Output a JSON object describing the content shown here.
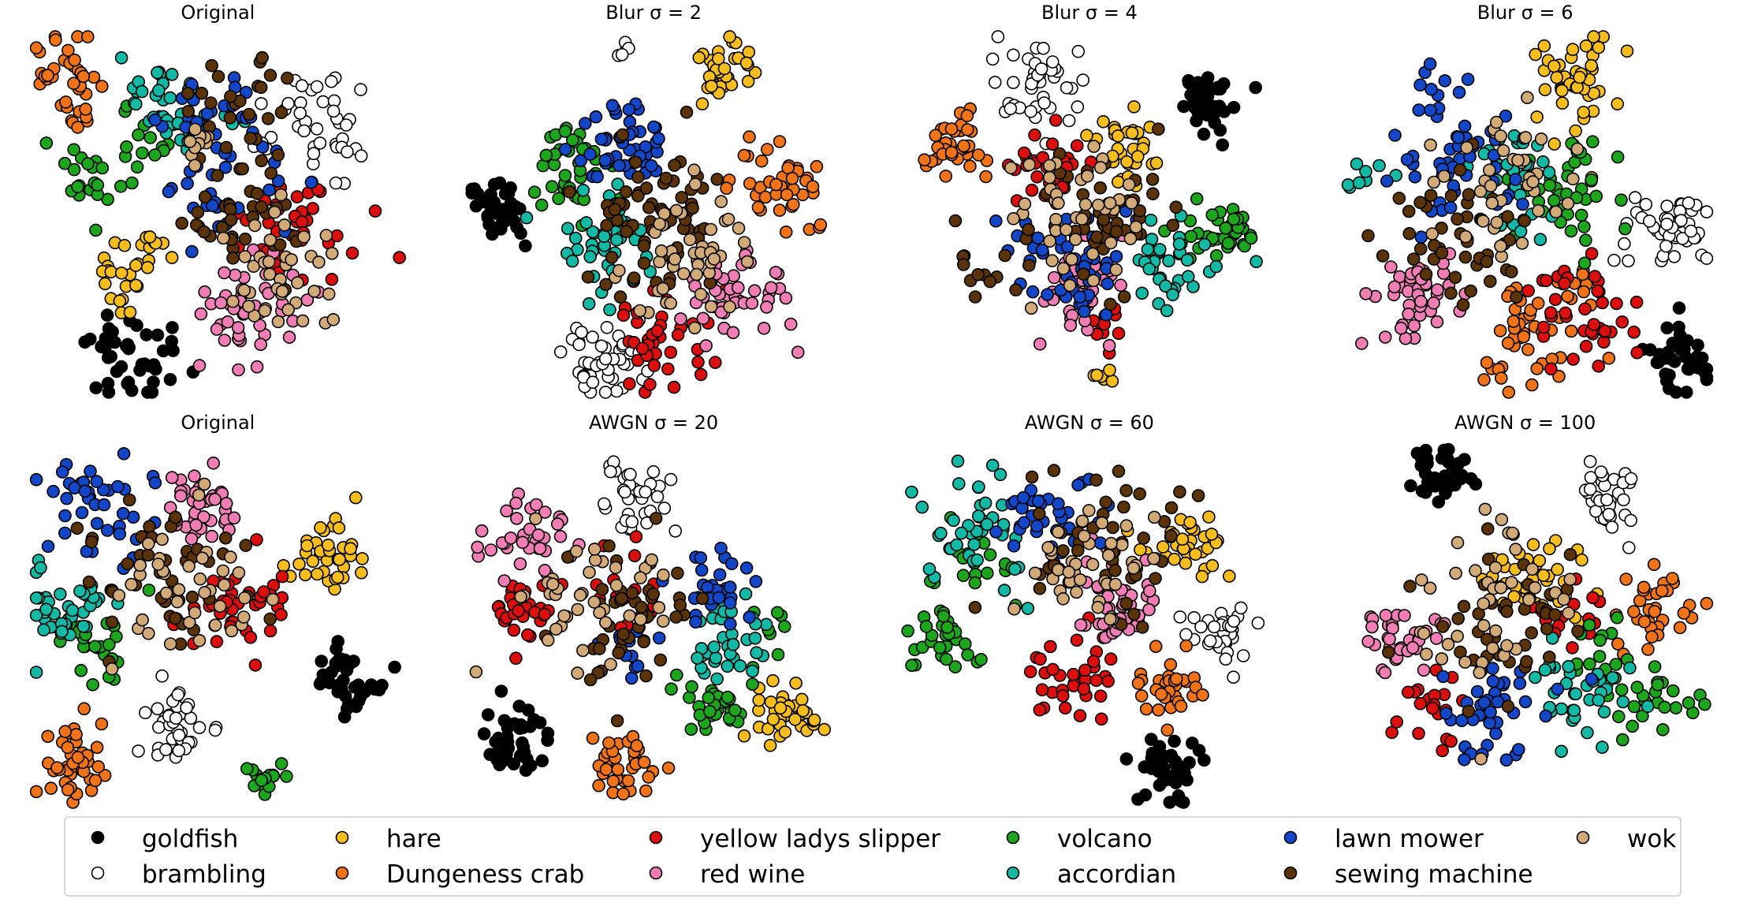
{
  "chart_data": {
    "type": "scatter",
    "legend": {
      "placement": "bottom",
      "entries": [
        {
          "key": "goldfish",
          "label": "goldfish",
          "color": "#000000"
        },
        {
          "key": "brambling",
          "label": "brambling",
          "color": "#ffffff"
        },
        {
          "key": "hare",
          "label": "hare",
          "color": "#f5be1e"
        },
        {
          "key": "dungeness_crab",
          "label": "Dungeness crab",
          "color": "#f07319"
        },
        {
          "key": "yellow_ladys_slipper",
          "label": "yellow ladys slipper",
          "color": "#dc0f0f"
        },
        {
          "key": "red_wine",
          "label": "red wine",
          "color": "#f07eb4"
        },
        {
          "key": "volcano",
          "label": "volcano",
          "color": "#1ea51e"
        },
        {
          "key": "accordian",
          "label": "accordian",
          "color": "#14b9a5"
        },
        {
          "key": "lawn_mower",
          "label": "lawn mower",
          "color": "#1446c8"
        },
        {
          "key": "sewing_machine",
          "label": "sewing machine",
          "color": "#5a330a"
        },
        {
          "key": "wok",
          "label": "wok",
          "color": "#d2aa78"
        }
      ]
    },
    "panels": [
      {
        "title": "Original",
        "clusters": [
          {
            "c": "goldfish",
            "x": 0.27,
            "y": 0.11,
            "s": 0.07,
            "n": 45
          },
          {
            "c": "brambling",
            "x": 0.78,
            "y": 0.75,
            "s": 0.07,
            "n": 40
          },
          {
            "c": "hare",
            "x": 0.25,
            "y": 0.33,
            "s": 0.05,
            "n": 25
          },
          {
            "c": "hare",
            "x": 0.32,
            "y": 0.41,
            "s": 0.02,
            "n": 5
          },
          {
            "c": "dungeness_crab",
            "x": 0.1,
            "y": 0.87,
            "s": 0.06,
            "n": 38
          },
          {
            "c": "yellow_ladys_slipper",
            "x": 0.7,
            "y": 0.47,
            "s": 0.1,
            "n": 40
          },
          {
            "c": "red_wine",
            "x": 0.58,
            "y": 0.24,
            "s": 0.07,
            "n": 45
          },
          {
            "c": "volcano",
            "x": 0.18,
            "y": 0.6,
            "s": 0.05,
            "n": 25
          },
          {
            "c": "volcano",
            "x": 0.32,
            "y": 0.71,
            "s": 0.05,
            "n": 12
          },
          {
            "c": "accordian",
            "x": 0.38,
            "y": 0.82,
            "s": 0.08,
            "n": 38
          },
          {
            "c": "lawn_mower",
            "x": 0.52,
            "y": 0.69,
            "s": 0.08,
            "n": 40
          },
          {
            "c": "lawn_mower",
            "x": 0.5,
            "y": 0.5,
            "s": 0.05,
            "n": 15
          },
          {
            "c": "sewing_machine",
            "x": 0.55,
            "y": 0.8,
            "s": 0.07,
            "n": 25
          },
          {
            "c": "sewing_machine",
            "x": 0.55,
            "y": 0.48,
            "s": 0.09,
            "n": 35
          },
          {
            "c": "wok",
            "x": 0.69,
            "y": 0.33,
            "s": 0.08,
            "n": 40
          },
          {
            "c": "wok",
            "x": 0.45,
            "y": 0.68,
            "s": 0.03,
            "n": 10
          }
        ]
      },
      {
        "title": "Blur σ = 2",
        "clusters": [
          {
            "c": "goldfish",
            "x": 0.08,
            "y": 0.51,
            "s": 0.045,
            "n": 38
          },
          {
            "c": "brambling",
            "x": 0.35,
            "y": 0.1,
            "s": 0.06,
            "n": 45
          },
          {
            "c": "brambling",
            "x": 0.43,
            "y": 0.95,
            "s": 0.02,
            "n": 5
          },
          {
            "c": "hare",
            "x": 0.68,
            "y": 0.88,
            "s": 0.05,
            "n": 35
          },
          {
            "c": "dungeness_crab",
            "x": 0.85,
            "y": 0.58,
            "s": 0.06,
            "n": 40
          },
          {
            "c": "yellow_ladys_slipper",
            "x": 0.53,
            "y": 0.15,
            "s": 0.07,
            "n": 40
          },
          {
            "c": "red_wine",
            "x": 0.72,
            "y": 0.27,
            "s": 0.07,
            "n": 45
          },
          {
            "c": "volcano",
            "x": 0.28,
            "y": 0.63,
            "s": 0.06,
            "n": 40
          },
          {
            "c": "accordian",
            "x": 0.35,
            "y": 0.4,
            "s": 0.08,
            "n": 40
          },
          {
            "c": "lawn_mower",
            "x": 0.42,
            "y": 0.7,
            "s": 0.06,
            "n": 45
          },
          {
            "c": "sewing_machine",
            "x": 0.52,
            "y": 0.48,
            "s": 0.1,
            "n": 65
          },
          {
            "c": "wok",
            "x": 0.62,
            "y": 0.38,
            "s": 0.1,
            "n": 45
          }
        ]
      },
      {
        "title": "Blur σ = 4",
        "clusters": [
          {
            "c": "goldfish",
            "x": 0.82,
            "y": 0.81,
            "s": 0.045,
            "n": 42
          },
          {
            "c": "brambling",
            "x": 0.35,
            "y": 0.85,
            "s": 0.06,
            "n": 42
          },
          {
            "c": "hare",
            "x": 0.6,
            "y": 0.68,
            "s": 0.05,
            "n": 35
          },
          {
            "c": "hare",
            "x": 0.52,
            "y": 0.06,
            "s": 0.02,
            "n": 6
          },
          {
            "c": "dungeness_crab",
            "x": 0.16,
            "y": 0.7,
            "s": 0.05,
            "n": 35
          },
          {
            "c": "yellow_ladys_slipper",
            "x": 0.38,
            "y": 0.63,
            "s": 0.06,
            "n": 30
          },
          {
            "c": "yellow_ladys_slipper",
            "x": 0.55,
            "y": 0.2,
            "s": 0.03,
            "n": 10
          },
          {
            "c": "red_wine",
            "x": 0.49,
            "y": 0.3,
            "s": 0.06,
            "n": 45
          },
          {
            "c": "volcano",
            "x": 0.89,
            "y": 0.46,
            "s": 0.045,
            "n": 30
          },
          {
            "c": "volcano",
            "x": 0.76,
            "y": 0.44,
            "s": 0.03,
            "n": 10
          },
          {
            "c": "accordian",
            "x": 0.72,
            "y": 0.35,
            "s": 0.06,
            "n": 35
          },
          {
            "c": "lawn_mower",
            "x": 0.45,
            "y": 0.39,
            "s": 0.08,
            "n": 50
          },
          {
            "c": "sewing_machine",
            "x": 0.55,
            "y": 0.47,
            "s": 0.1,
            "n": 45
          },
          {
            "c": "sewing_machine",
            "x": 0.2,
            "y": 0.35,
            "s": 0.05,
            "n": 12
          },
          {
            "c": "wok",
            "x": 0.45,
            "y": 0.52,
            "s": 0.09,
            "n": 45
          }
        ]
      },
      {
        "title": "Blur σ = 6",
        "clusters": [
          {
            "c": "goldfish",
            "x": 0.92,
            "y": 0.1,
            "s": 0.045,
            "n": 40
          },
          {
            "c": "brambling",
            "x": 0.9,
            "y": 0.46,
            "s": 0.06,
            "n": 45
          },
          {
            "c": "hare",
            "x": 0.64,
            "y": 0.88,
            "s": 0.07,
            "n": 45
          },
          {
            "c": "dungeness_crab",
            "x": 0.5,
            "y": 0.15,
            "s": 0.07,
            "n": 40
          },
          {
            "c": "dungeness_crab",
            "x": 0.63,
            "y": 0.3,
            "s": 0.04,
            "n": 10
          },
          {
            "c": "yellow_ladys_slipper",
            "x": 0.65,
            "y": 0.22,
            "s": 0.08,
            "n": 40
          },
          {
            "c": "red_wine",
            "x": 0.2,
            "y": 0.28,
            "s": 0.06,
            "n": 45
          },
          {
            "c": "volcano",
            "x": 0.6,
            "y": 0.55,
            "s": 0.08,
            "n": 40
          },
          {
            "c": "accordian",
            "x": 0.48,
            "y": 0.6,
            "s": 0.07,
            "n": 35
          },
          {
            "c": "accordian",
            "x": 0.05,
            "y": 0.6,
            "s": 0.04,
            "n": 8
          },
          {
            "c": "lawn_mower",
            "x": 0.33,
            "y": 0.62,
            "s": 0.09,
            "n": 45
          },
          {
            "c": "lawn_mower",
            "x": 0.25,
            "y": 0.8,
            "s": 0.05,
            "n": 12
          },
          {
            "c": "sewing_machine",
            "x": 0.3,
            "y": 0.45,
            "s": 0.09,
            "n": 45
          },
          {
            "c": "wok",
            "x": 0.42,
            "y": 0.58,
            "s": 0.1,
            "n": 40
          }
        ]
      },
      {
        "title": "Original",
        "clusters": [
          {
            "c": "goldfish",
            "x": 0.86,
            "y": 0.36,
            "s": 0.05,
            "n": 40
          },
          {
            "c": "brambling",
            "x": 0.38,
            "y": 0.23,
            "s": 0.05,
            "n": 40
          },
          {
            "c": "hare",
            "x": 0.8,
            "y": 0.7,
            "s": 0.05,
            "n": 40
          },
          {
            "c": "dungeness_crab",
            "x": 0.12,
            "y": 0.13,
            "s": 0.05,
            "n": 40
          },
          {
            "c": "yellow_ladys_slipper",
            "x": 0.57,
            "y": 0.54,
            "s": 0.07,
            "n": 40
          },
          {
            "c": "red_wine",
            "x": 0.46,
            "y": 0.83,
            "s": 0.05,
            "n": 40
          },
          {
            "c": "volcano",
            "x": 0.18,
            "y": 0.45,
            "s": 0.06,
            "n": 25
          },
          {
            "c": "volcano",
            "x": 0.62,
            "y": 0.09,
            "s": 0.035,
            "n": 15
          },
          {
            "c": "accordian",
            "x": 0.1,
            "y": 0.55,
            "s": 0.07,
            "n": 40
          },
          {
            "c": "lawn_mower",
            "x": 0.18,
            "y": 0.84,
            "s": 0.08,
            "n": 40
          },
          {
            "c": "sewing_machine",
            "x": 0.35,
            "y": 0.65,
            "s": 0.1,
            "n": 45
          },
          {
            "c": "wok",
            "x": 0.4,
            "y": 0.6,
            "s": 0.1,
            "n": 40
          }
        ]
      },
      {
        "title": "AWGN σ = 20",
        "clusters": [
          {
            "c": "goldfish",
            "x": 0.12,
            "y": 0.18,
            "s": 0.045,
            "n": 40
          },
          {
            "c": "brambling",
            "x": 0.45,
            "y": 0.85,
            "s": 0.05,
            "n": 38
          },
          {
            "c": "hare",
            "x": 0.86,
            "y": 0.27,
            "s": 0.05,
            "n": 40
          },
          {
            "c": "dungeness_crab",
            "x": 0.42,
            "y": 0.12,
            "s": 0.05,
            "n": 35
          },
          {
            "c": "yellow_ladys_slipper",
            "x": 0.15,
            "y": 0.52,
            "s": 0.05,
            "n": 30
          },
          {
            "c": "yellow_ladys_slipper",
            "x": 0.45,
            "y": 0.6,
            "s": 0.06,
            "n": 15
          },
          {
            "c": "red_wine",
            "x": 0.17,
            "y": 0.73,
            "s": 0.07,
            "n": 35
          },
          {
            "c": "volcano",
            "x": 0.65,
            "y": 0.27,
            "s": 0.05,
            "n": 30
          },
          {
            "c": "volcano",
            "x": 0.82,
            "y": 0.47,
            "s": 0.03,
            "n": 8
          },
          {
            "c": "accordian",
            "x": 0.7,
            "y": 0.45,
            "s": 0.06,
            "n": 35
          },
          {
            "c": "lawn_mower",
            "x": 0.68,
            "y": 0.6,
            "s": 0.06,
            "n": 30
          },
          {
            "c": "lawn_mower",
            "x": 0.42,
            "y": 0.43,
            "s": 0.05,
            "n": 12
          },
          {
            "c": "sewing_machine",
            "x": 0.45,
            "y": 0.53,
            "s": 0.1,
            "n": 45
          },
          {
            "c": "wok",
            "x": 0.35,
            "y": 0.57,
            "s": 0.09,
            "n": 40
          }
        ]
      },
      {
        "title": "AWGN σ = 60",
        "clusters": [
          {
            "c": "goldfish",
            "x": 0.7,
            "y": 0.1,
            "s": 0.045,
            "n": 42
          },
          {
            "c": "brambling",
            "x": 0.86,
            "y": 0.47,
            "s": 0.05,
            "n": 35
          },
          {
            "c": "hare",
            "x": 0.76,
            "y": 0.72,
            "s": 0.05,
            "n": 35
          },
          {
            "c": "dungeness_crab",
            "x": 0.7,
            "y": 0.33,
            "s": 0.05,
            "n": 35
          },
          {
            "c": "yellow_ladys_slipper",
            "x": 0.45,
            "y": 0.35,
            "s": 0.06,
            "n": 35
          },
          {
            "c": "red_wine",
            "x": 0.57,
            "y": 0.57,
            "s": 0.06,
            "n": 40
          },
          {
            "c": "volcano",
            "x": 0.1,
            "y": 0.47,
            "s": 0.05,
            "n": 30
          },
          {
            "c": "volcano",
            "x": 0.22,
            "y": 0.65,
            "s": 0.06,
            "n": 20
          },
          {
            "c": "accordian",
            "x": 0.2,
            "y": 0.75,
            "s": 0.08,
            "n": 40
          },
          {
            "c": "lawn_mower",
            "x": 0.38,
            "y": 0.8,
            "s": 0.07,
            "n": 40
          },
          {
            "c": "sewing_machine",
            "x": 0.55,
            "y": 0.72,
            "s": 0.1,
            "n": 45
          },
          {
            "c": "wok",
            "x": 0.5,
            "y": 0.67,
            "s": 0.09,
            "n": 40
          }
        ]
      },
      {
        "title": "AWGN σ = 100",
        "clusters": [
          {
            "c": "goldfish",
            "x": 0.27,
            "y": 0.91,
            "s": 0.045,
            "n": 38
          },
          {
            "c": "brambling",
            "x": 0.72,
            "y": 0.85,
            "s": 0.05,
            "n": 35
          },
          {
            "c": "hare",
            "x": 0.55,
            "y": 0.63,
            "s": 0.07,
            "n": 40
          },
          {
            "c": "dungeness_crab",
            "x": 0.85,
            "y": 0.55,
            "s": 0.06,
            "n": 35
          },
          {
            "c": "yellow_ladys_slipper",
            "x": 0.25,
            "y": 0.3,
            "s": 0.06,
            "n": 20
          },
          {
            "c": "yellow_ladys_slipper",
            "x": 0.6,
            "y": 0.52,
            "s": 0.05,
            "n": 15
          },
          {
            "c": "red_wine",
            "x": 0.17,
            "y": 0.46,
            "s": 0.05,
            "n": 35
          },
          {
            "c": "volcano",
            "x": 0.84,
            "y": 0.3,
            "s": 0.06,
            "n": 25
          },
          {
            "c": "volcano",
            "x": 0.7,
            "y": 0.4,
            "s": 0.05,
            "n": 15
          },
          {
            "c": "accordian",
            "x": 0.65,
            "y": 0.3,
            "s": 0.07,
            "n": 35
          },
          {
            "c": "lawn_mower",
            "x": 0.43,
            "y": 0.28,
            "s": 0.07,
            "n": 40
          },
          {
            "c": "sewing_machine",
            "x": 0.45,
            "y": 0.5,
            "s": 0.11,
            "n": 45
          },
          {
            "c": "wok",
            "x": 0.4,
            "y": 0.55,
            "s": 0.1,
            "n": 40
          }
        ]
      }
    ]
  }
}
